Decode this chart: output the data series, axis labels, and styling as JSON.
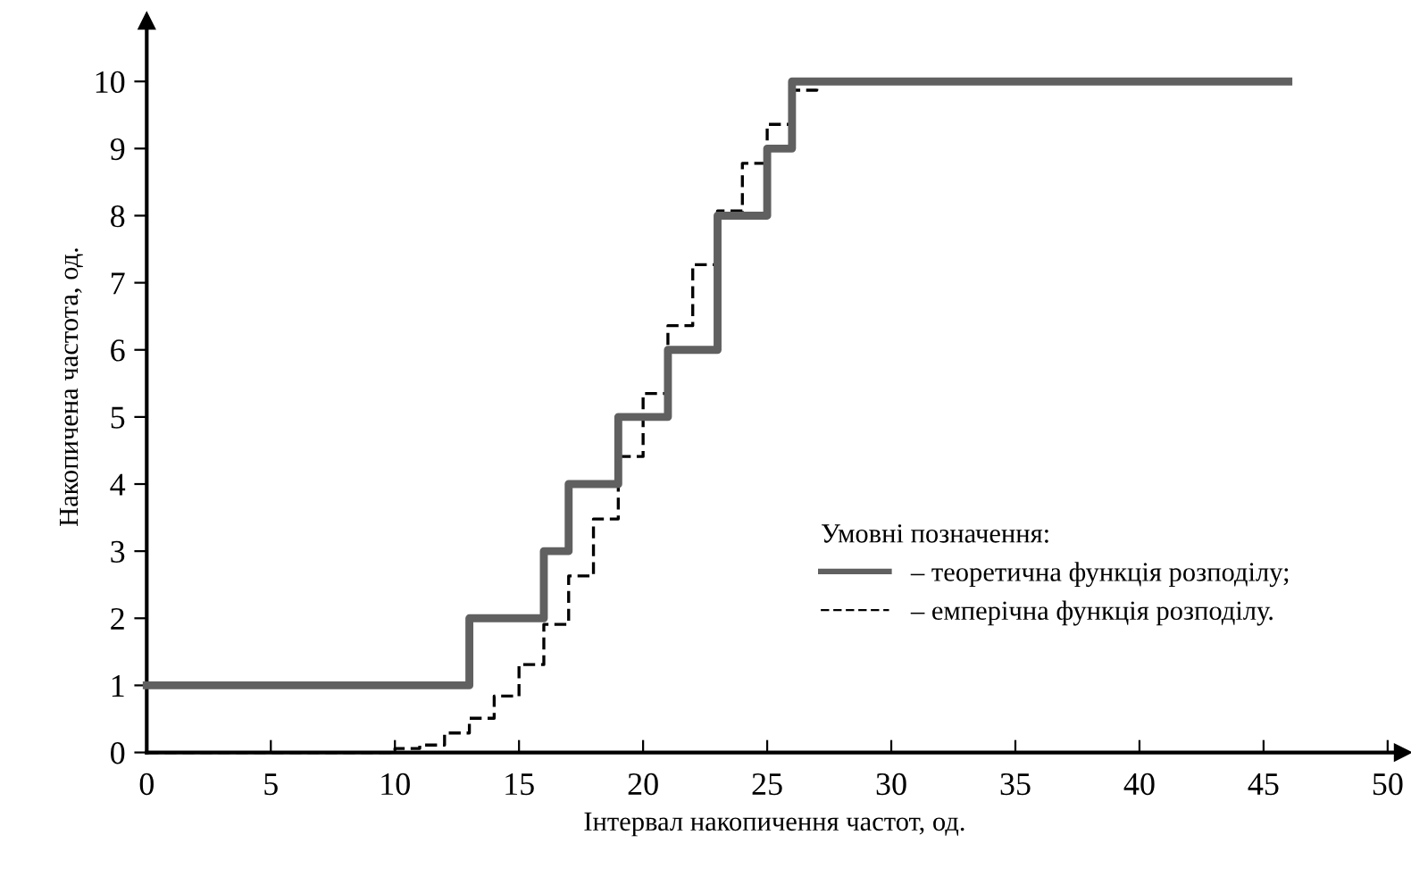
{
  "chart_data": {
    "type": "step",
    "xlabel": "Інтервал накопичення частот, од.",
    "ylabel": "Накопичена частота, од.",
    "legend_title": "Умовні позначення:",
    "series": [
      {
        "name": "– теоретична функція розподілу;",
        "color": "#606060",
        "line_style": "solid",
        "x": [
          0,
          13,
          16,
          17,
          19,
          21,
          23,
          25,
          26,
          46
        ],
        "values": [
          1,
          2,
          3,
          4,
          5,
          6,
          8,
          9,
          10,
          10
        ]
      },
      {
        "name": "– емперічна функція розподілу.",
        "color": "#000000",
        "line_style": "dashed",
        "x": [
          0,
          10,
          11,
          12,
          13,
          14,
          15,
          16,
          17,
          18,
          19,
          20,
          21,
          22,
          23,
          24,
          25,
          26,
          27
        ],
        "values": [
          0,
          0.06,
          0.11,
          0.29,
          0.51,
          0.84,
          1.31,
          1.91,
          2.63,
          3.48,
          4.41,
          5.35,
          6.36,
          7.27,
          8.07,
          8.78,
          9.36,
          9.87,
          10
        ]
      }
    ],
    "xlim": [
      0,
      50.6
    ],
    "ylim": [
      0,
      10.9
    ],
    "xticks": [
      0,
      5,
      10,
      15,
      20,
      25,
      30,
      35,
      40,
      45,
      50
    ],
    "yticks": [
      0,
      1,
      2,
      3,
      4,
      5,
      6,
      7,
      8,
      9,
      10
    ],
    "grid": false,
    "legend": "lower right"
  }
}
